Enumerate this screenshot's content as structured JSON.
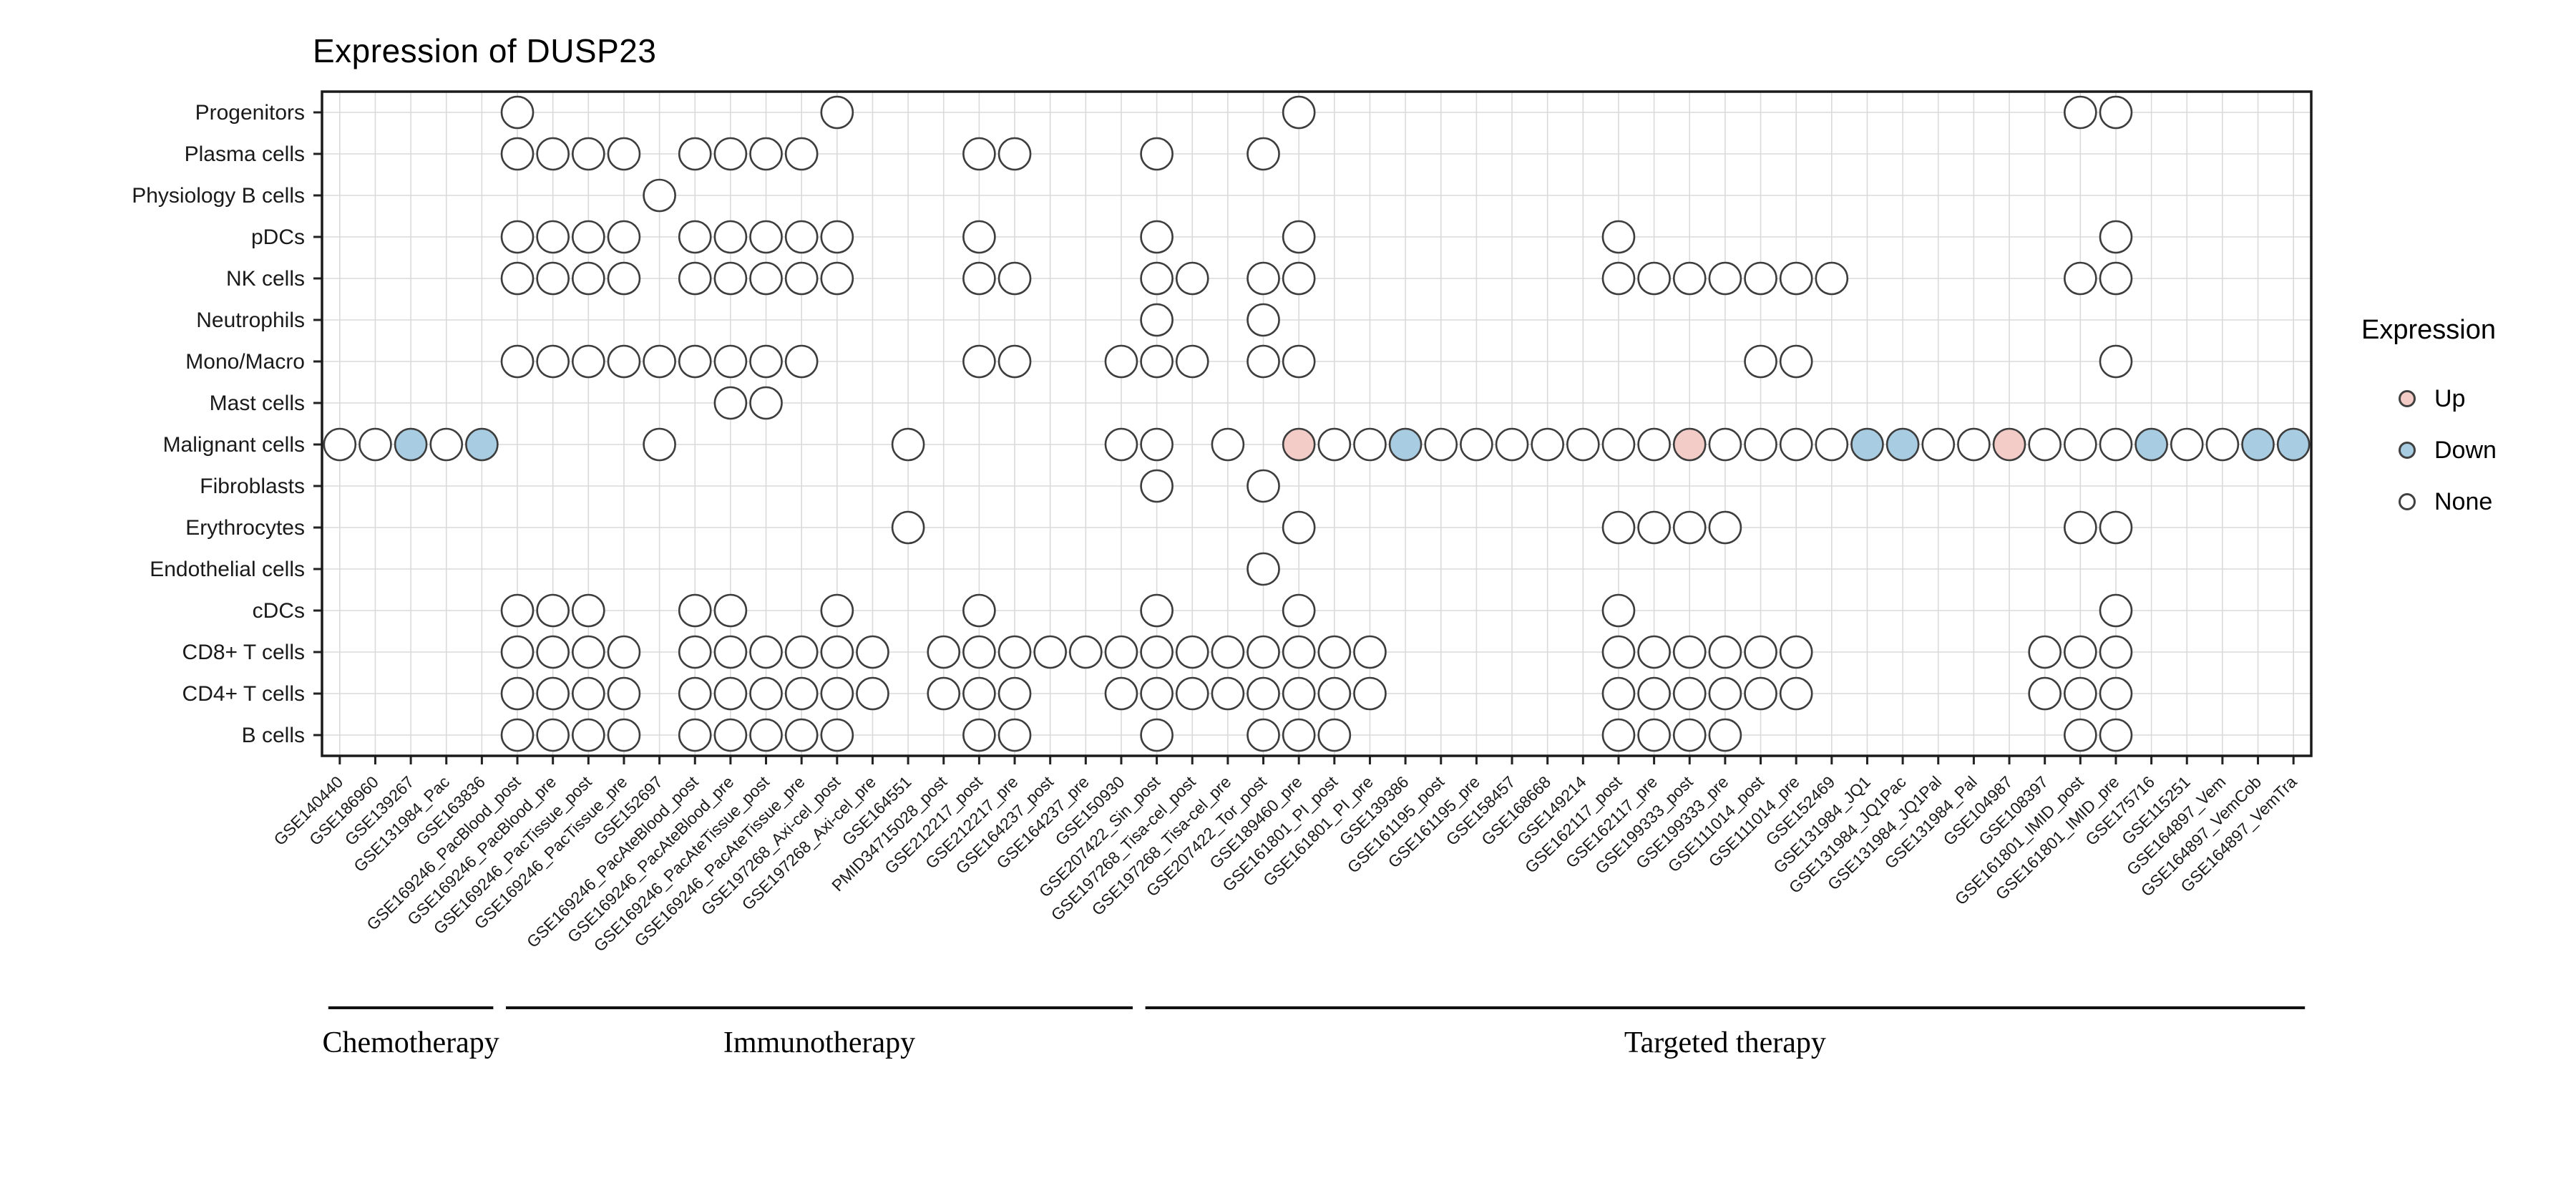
{
  "title": "Expression of DUSP23",
  "legend": {
    "title": "Expression",
    "items": [
      {
        "label": "Up",
        "color": "#F4CCC7"
      },
      {
        "label": "Down",
        "color": "#A8CDE2"
      },
      {
        "label": "None",
        "color": "#FFFFFF"
      }
    ]
  },
  "chart_data": {
    "type": "heatmap",
    "mark": "circle",
    "title": "Expression of DUSP23",
    "legend_title": "Expression",
    "legend_position": "right",
    "grid": true,
    "status_colors": {
      "up": "#F4CCC7",
      "down": "#A8CDE2",
      "none": "#FFFFFF"
    },
    "rows": [
      "Progenitors",
      "Plasma cells",
      "Physiology B cells",
      "pDCs",
      "NK cells",
      "Neutrophils",
      "Mono/Macro",
      "Mast cells",
      "Malignant cells",
      "Fibroblasts",
      "Erythrocytes",
      "Endothelial cells",
      "cDCs",
      "CD8+ T cells",
      "CD4+ T cells",
      "B cells"
    ],
    "columns": [
      "GSE140440",
      "GSE186960",
      "GSE139267",
      "GSE131984_Pac",
      "GSE163836",
      "GSE169246_PacBlood_post",
      "GSE169246_PacBlood_pre",
      "GSE169246_PacTissue_post",
      "GSE169246_PacTissue_pre",
      "GSE152697",
      "GSE169246_PacAteBlood_post",
      "GSE169246_PacAteBlood_pre",
      "GSE169246_PacAteTissue_post",
      "GSE169246_PacAteTissue_pre",
      "GSE197268_Axi-cel_post",
      "GSE197268_Axi-cel_pre",
      "GSE164551",
      "PMID34715028_post",
      "GSE212217_post",
      "GSE212217_pre",
      "GSE164237_post",
      "GSE164237_pre",
      "GSE150930",
      "GSE207422_Sin_post",
      "GSE197268_Tisa-cel_post",
      "GSE197268_Tisa-cel_pre",
      "GSE207422_Tor_post",
      "GSE189460_pre",
      "GSE161801_PI_post",
      "GSE161801_PI_pre",
      "GSE139386",
      "GSE161195_post",
      "GSE161195_pre",
      "GSE158457",
      "GSE168668",
      "GSE149214",
      "GSE162117_post",
      "GSE162117_pre",
      "GSE199333_post",
      "GSE199333_pre",
      "GSE111014_post",
      "GSE111014_pre",
      "GSE152469",
      "GSE131984_JQ1",
      "GSE131984_JQ1Pac",
      "GSE131984_JQ1Pal",
      "GSE131984_Pal",
      "GSE104987",
      "GSE108397",
      "GSE161801_IMID_post",
      "GSE161801_IMID_pre",
      "GSE175716",
      "GSE115251",
      "GSE164897_Vem",
      "GSE164897_VemCob",
      "GSE164897_VemTra"
    ],
    "groups": [
      {
        "label": "Chemotherapy",
        "start": 0,
        "end": 4
      },
      {
        "label": "Immunotherapy",
        "start": 5,
        "end": 22
      },
      {
        "label": "Targeted therapy",
        "start": 23,
        "end": 55
      }
    ],
    "dots": [
      [
        [
          5
        ],
        [
          14
        ],
        [
          27
        ],
        [
          49
        ],
        [
          50
        ]
      ],
      [
        [
          5
        ],
        [
          6
        ],
        [
          7
        ],
        [
          8
        ],
        [
          10
        ],
        [
          11
        ],
        [
          12
        ],
        [
          13
        ],
        [
          18
        ],
        [
          19
        ],
        [
          23
        ],
        [
          26
        ]
      ],
      [
        [
          9
        ]
      ],
      [
        [
          5
        ],
        [
          6
        ],
        [
          7
        ],
        [
          8
        ],
        [
          10
        ],
        [
          11
        ],
        [
          12
        ],
        [
          13
        ],
        [
          14
        ],
        [
          18
        ],
        [
          23
        ],
        [
          27
        ],
        [
          36
        ],
        [
          50
        ]
      ],
      [
        [
          5
        ],
        [
          6
        ],
        [
          7
        ],
        [
          8
        ],
        [
          10
        ],
        [
          11
        ],
        [
          12
        ],
        [
          13
        ],
        [
          14
        ],
        [
          18
        ],
        [
          19
        ],
        [
          23
        ],
        [
          24
        ],
        [
          26
        ],
        [
          27
        ],
        [
          36
        ],
        [
          37
        ],
        [
          38
        ],
        [
          39
        ],
        [
          40
        ],
        [
          41
        ],
        [
          42
        ],
        [
          49
        ],
        [
          50
        ]
      ],
      [
        [
          23
        ],
        [
          26
        ]
      ],
      [
        [
          5
        ],
        [
          6
        ],
        [
          7
        ],
        [
          8
        ],
        [
          9
        ],
        [
          10
        ],
        [
          11
        ],
        [
          12
        ],
        [
          13
        ],
        [
          18
        ],
        [
          19
        ],
        [
          22
        ],
        [
          23
        ],
        [
          24
        ],
        [
          26
        ],
        [
          27
        ],
        [
          40
        ],
        [
          41
        ],
        [
          50
        ]
      ],
      [
        [
          11
        ],
        [
          12
        ]
      ],
      [
        [
          0
        ],
        [
          1
        ],
        [
          2,
          "down"
        ],
        [
          3
        ],
        [
          4,
          "down"
        ],
        [
          9
        ],
        [
          16
        ],
        [
          22
        ],
        [
          23
        ],
        [
          25
        ],
        [
          27,
          "up"
        ],
        [
          28
        ],
        [
          29
        ],
        [
          30,
          "down"
        ],
        [
          31
        ],
        [
          32
        ],
        [
          33
        ],
        [
          34
        ],
        [
          35
        ],
        [
          36
        ],
        [
          37
        ],
        [
          38,
          "up"
        ],
        [
          39
        ],
        [
          40
        ],
        [
          41
        ],
        [
          42
        ],
        [
          43,
          "down"
        ],
        [
          44,
          "down"
        ],
        [
          45
        ],
        [
          46
        ],
        [
          47,
          "up"
        ],
        [
          48
        ],
        [
          49
        ],
        [
          50
        ],
        [
          51,
          "down"
        ],
        [
          52
        ],
        [
          53
        ],
        [
          54,
          "down"
        ],
        [
          55,
          "down"
        ]
      ],
      [
        [
          23
        ],
        [
          26
        ]
      ],
      [
        [
          16
        ],
        [
          27
        ],
        [
          36
        ],
        [
          37
        ],
        [
          38
        ],
        [
          39
        ],
        [
          49
        ],
        [
          50
        ]
      ],
      [
        [
          26
        ]
      ],
      [
        [
          5
        ],
        [
          6
        ],
        [
          7
        ],
        [
          10
        ],
        [
          11
        ],
        [
          14
        ],
        [
          18
        ],
        [
          23
        ],
        [
          27
        ],
        [
          36
        ],
        [
          50
        ]
      ],
      [
        [
          5
        ],
        [
          6
        ],
        [
          7
        ],
        [
          8
        ],
        [
          10
        ],
        [
          11
        ],
        [
          12
        ],
        [
          13
        ],
        [
          14
        ],
        [
          15
        ],
        [
          17
        ],
        [
          18
        ],
        [
          19
        ],
        [
          20
        ],
        [
          21
        ],
        [
          22
        ],
        [
          23
        ],
        [
          24
        ],
        [
          25
        ],
        [
          26
        ],
        [
          27
        ],
        [
          28
        ],
        [
          29
        ],
        [
          36
        ],
        [
          37
        ],
        [
          38
        ],
        [
          39
        ],
        [
          40
        ],
        [
          41
        ],
        [
          48
        ],
        [
          49
        ],
        [
          50
        ]
      ],
      [
        [
          5
        ],
        [
          6
        ],
        [
          7
        ],
        [
          8
        ],
        [
          10
        ],
        [
          11
        ],
        [
          12
        ],
        [
          13
        ],
        [
          14
        ],
        [
          15
        ],
        [
          17
        ],
        [
          18
        ],
        [
          19
        ],
        [
          22
        ],
        [
          23
        ],
        [
          24
        ],
        [
          25
        ],
        [
          26
        ],
        [
          27
        ],
        [
          28
        ],
        [
          29
        ],
        [
          36
        ],
        [
          37
        ],
        [
          38
        ],
        [
          39
        ],
        [
          40
        ],
        [
          41
        ],
        [
          48
        ],
        [
          49
        ],
        [
          50
        ]
      ],
      [
        [
          5
        ],
        [
          6
        ],
        [
          7
        ],
        [
          8
        ],
        [
          10
        ],
        [
          11
        ],
        [
          12
        ],
        [
          13
        ],
        [
          14
        ],
        [
          18
        ],
        [
          19
        ],
        [
          23
        ],
        [
          26
        ],
        [
          27
        ],
        [
          28
        ],
        [
          36
        ],
        [
          37
        ],
        [
          38
        ],
        [
          39
        ],
        [
          49
        ],
        [
          50
        ]
      ]
    ]
  }
}
